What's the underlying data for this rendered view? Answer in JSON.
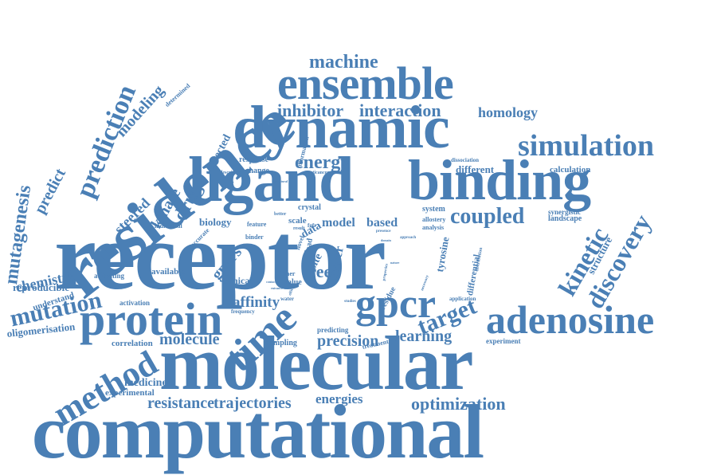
{
  "word_cloud": {
    "color": "#4a7fb5",
    "words": {
      "receptor": "receptor",
      "molecular": "molecular",
      "computational": "computational",
      "residence": "residence",
      "ligand": "ligand",
      "binding": "binding",
      "dynamic": "dynamic",
      "ensemble": "ensemble",
      "protein": "protein",
      "time": "time",
      "gpcr": "gpcr",
      "adenosine": "adenosine",
      "simulation": "simulation",
      "method": "method",
      "prediction": "prediction",
      "mutagenesis": "mutagenesis",
      "mutation": "mutation",
      "machine": "machine",
      "inhibitor": "inhibitor",
      "interaction": "interaction",
      "homology": "homology",
      "coupled": "coupled",
      "kinetic": "kinetic",
      "discovery": "discovery",
      "target": "target",
      "optimization": "optimization",
      "trajectories": "trajectories",
      "resistance": "resistance",
      "energies": "energies",
      "learning": "learning",
      "precision": "precision",
      "molecule": "molecule",
      "affinity": "affinity",
      "free": "free",
      "energy": "energy",
      "drug": "drug",
      "kinase": "kinase",
      "steered": "steered",
      "modeling": "modeling",
      "predict": "predict",
      "chemistry": "chemistry",
      "reproducible": "reproducible",
      "understand": "understand",
      "oligomerisation": "oligomerisation",
      "medicine": "medicine",
      "experimental": "experimental",
      "correlation": "correlation",
      "sampling": "sampling",
      "activation": "activation",
      "activating": "activating",
      "available": "available",
      "gpcrs": "gpcrs",
      "clinical": "clinical",
      "value": "value",
      "cancer": "cancer",
      "tyrosine": "tyrosine",
      "differential": "differential",
      "structure": "structure",
      "landscape": "landscape",
      "synergistic": "synergistic",
      "calculation": "calculation",
      "different": "different",
      "dissociation": "dissociation",
      "response": "response",
      "change": "change",
      "information": "information",
      "directed": "directed",
      "determined": "determined",
      "biology": "biology",
      "individual": "individual",
      "accurate": "accurate",
      "model": "model",
      "based": "based",
      "data": "data",
      "scale": "scale",
      "crystal": "crystal",
      "system": "system",
      "allostery": "allostery",
      "analysis": "analysis",
      "site": "site",
      "residue": "residue",
      "predicting": "predicting",
      "treatment": "treatment",
      "experiment": "experiment",
      "application": "application",
      "feature": "feature",
      "binder": "binder",
      "novel": "novel",
      "lead": "lead",
      "dimer": "dimer",
      "better": "better",
      "descriptor": "descriptor",
      "anticancer": "anticancer",
      "water": "water",
      "frequency": "frequency",
      "studies": "studies",
      "presence": "presence",
      "necessary": "necessary",
      "fgfr": "fgfr",
      "result": "result",
      "efficacy": "efficacy",
      "approach": "approach",
      "distribution": "distribution",
      "properties": "properties",
      "entrance": "entrance",
      "nature": "nature",
      "contact": "contact",
      "genesis": "genesis",
      "domain": "domain",
      "structural": "structural"
    }
  }
}
